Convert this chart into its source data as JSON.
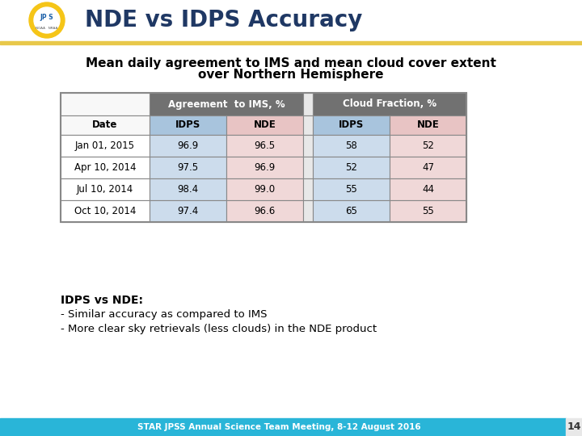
{
  "title": "NDE vs IDPS Accuracy",
  "table_title_line1": "Mean daily agreement to IMS and mean cloud cover extent",
  "table_title_line2": "over Northern Hemisphere",
  "rows": [
    [
      "Jan 01, 2015",
      "96.9",
      "96.5",
      "58",
      "52"
    ],
    [
      "Apr 10, 2014",
      "97.5",
      "96.9",
      "52",
      "47"
    ],
    [
      "Jul 10, 2014",
      "98.4",
      "99.0",
      "55",
      "44"
    ],
    [
      "Oct 10, 2014",
      "97.4",
      "96.6",
      "65",
      "55"
    ]
  ],
  "bullet_title": "IDPS vs NDE:",
  "bullets": [
    "- Similar accuracy as compared to IMS",
    "- More clear sky retrievals (less clouds) in the NDE product"
  ],
  "footer_text": "STAR JPSS Annual Science Team Meeting, 8-12 August 2016",
  "page_number": "14",
  "bg_color": "#ffffff",
  "header_title_bg": "#717171",
  "header_sub_bg_idps": "#a8c4dd",
  "header_sub_bg_nde": "#e8c4c4",
  "cell_bg_idps": "#ccdcec",
  "cell_bg_nde": "#f0d8d8",
  "cell_bg_date": "#ffffff",
  "title_color": "#1f3864",
  "footer_bg": "#29b5d8",
  "gold_line_color": "#e8c84a",
  "table_border_color": "#888888",
  "separator_bg": "#e8e8e8"
}
